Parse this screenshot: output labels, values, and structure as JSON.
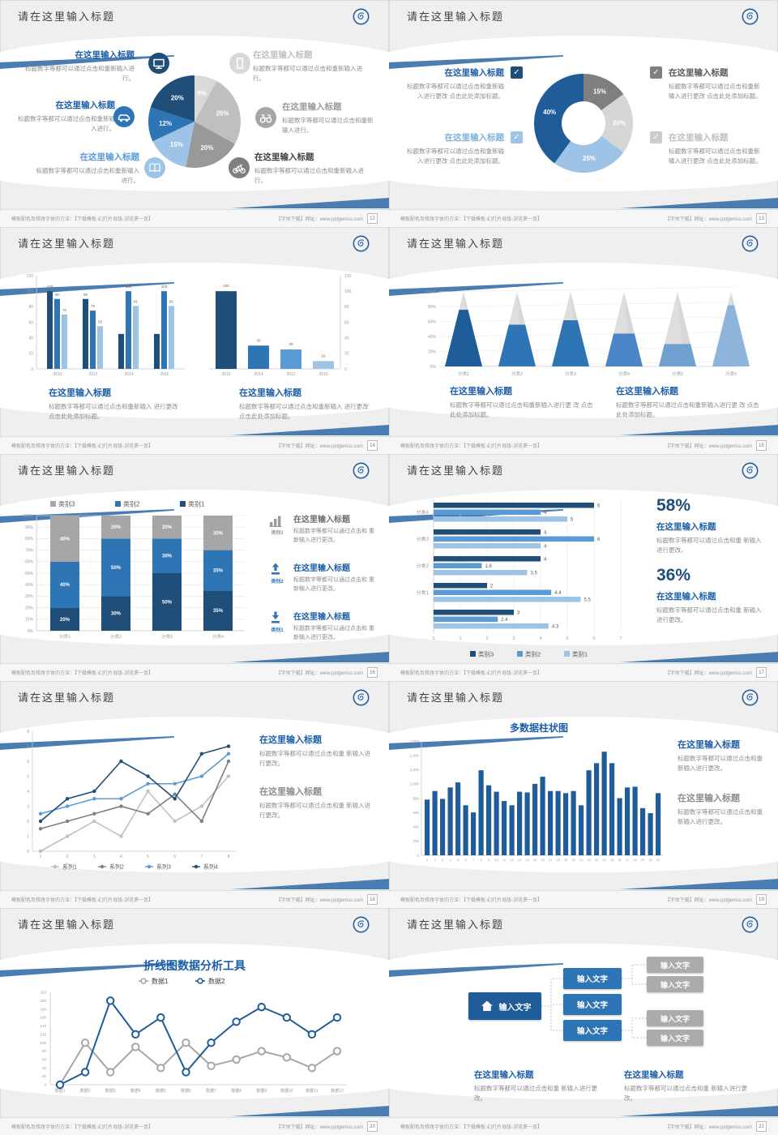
{
  "common": {
    "header_title": "请在这里输入标题",
    "footer_left": "模板配色及修改字体的方法：【下载模板-幻灯片母版-浏览第一页】",
    "footer_right": "【字体下载】网址：www.pptgenius.com",
    "logo_name": "school-emblem",
    "check_glyph": "✓",
    "colors": {
      "navy": "#1F4E79",
      "brightNavy": "#1F5C99",
      "blue": "#2E75B6",
      "medBlue": "#5B9BD5",
      "lightBlue": "#9DC3E6",
      "paleBlue": "#BDD7EE",
      "grayD": "#7F7F7F",
      "gray": "#A6A6A6",
      "grayL": "#BFBFBF",
      "grayP": "#D9D9D9",
      "titleBlue": "#1B5EA8",
      "body": "#8C8C8C",
      "axis": "#D9D9D9",
      "tick": "#9A9A9A"
    }
  },
  "slides": [
    {
      "page": "12",
      "type": "pie-callouts",
      "chart_data": {
        "type": "pie",
        "values": [
          8,
          25,
          20,
          15,
          12,
          20
        ],
        "labels": [
          "8%",
          "25%",
          "20%",
          "15%",
          "12%",
          "20%"
        ],
        "colors": [
          "#D9D9D9",
          "#BFBFBF",
          "#999999",
          "#9DC3E6",
          "#2E75B6",
          "#1F4E79"
        ]
      },
      "callouts": [
        {
          "title": "在这里输入标题",
          "body": "标题数字等都可以通过点击和重新输入进行。",
          "icon": "monitor-icon",
          "icon_bg": "#1F4E79",
          "title_color": "#1B5EA8"
        },
        {
          "title": "在这里输入标题",
          "body": "标题数字等都可以通过点击和重新输入进行。",
          "icon": "car-icon",
          "icon_bg": "#2E75B6",
          "title_color": "#1B5EA8"
        },
        {
          "title": "在这里输入标题",
          "body": "标题数字等都可以通过点击和重新输入进行。",
          "icon": "book-icon",
          "icon_bg": "#9DC3E6",
          "title_color": "#5B9BD5"
        },
        {
          "title": "在这里输入标题",
          "body": "标题数字等都可以通过点击和重新输入进行。",
          "icon": "phone-icon",
          "icon_bg": "#D9D9D9",
          "title_color": "#C0C0C0"
        },
        {
          "title": "在这里输入标题",
          "body": "标题数字等都可以通过点击和重新输入进行。",
          "icon": "binoculars-icon",
          "icon_bg": "#A6A6A6",
          "title_color": "#9A9A9A"
        },
        {
          "title": "在这里输入标题",
          "body": "标题数字等都可以通过点击和重新输入进行。",
          "icon": "bicycle-icon",
          "icon_bg": "#7F7F7F",
          "title_color": "#404040"
        }
      ]
    },
    {
      "page": "13",
      "type": "donut-checks",
      "chart_data": {
        "type": "pie",
        "values": [
          15,
          20,
          25,
          40
        ],
        "labels": [
          "15%",
          "20%",
          "25%",
          "40%"
        ],
        "colors": [
          "#7F7F7F",
          "#D6D6D6",
          "#9DC3E6",
          "#1F5C99"
        ],
        "inner_radius": true
      },
      "items": [
        {
          "title": "在这里输入标题",
          "body": "标题数字等都可以通过点击和重新输入进行更改 点击此处添加标题。",
          "box": "#1F4E79",
          "title_color": "#1B5EA8"
        },
        {
          "title": "在这里输入标题",
          "body": "标题数字等都可以通过点击和重新输入进行更改 点击此处添加标题。",
          "box": "#9DC3E6",
          "title_color": "#7EB0DC"
        },
        {
          "title": "在这里输入标题",
          "body": "标题数字等都可以通过点击和重新输入进行更改 点击此处添加标题。",
          "box": "#7F7F7F",
          "title_color": "#595959"
        },
        {
          "title": "在这里输入标题",
          "body": "标题数字等都可以通过点击和重新输入进行更改 点击此处添加标题。",
          "box": "#CCCCCC",
          "title_color": "#BFBFBF"
        }
      ]
    },
    {
      "page": "14",
      "type": "dual-bars",
      "chart_data": [
        {
          "type": "bar",
          "categories": [
            "2010",
            "2012",
            "2014",
            "2016"
          ],
          "ylim": [
            0,
            120
          ],
          "series": [
            {
              "name": "s1",
              "color": "#1F4E79",
              "values": [
                100,
                90,
                45,
                45
              ],
              "labels": [
                "100",
                "90",
                "",
                ""
              ]
            },
            {
              "name": "s2",
              "color": "#2E75B6",
              "values": [
                90,
                75,
                100,
                100
              ],
              "labels": [
                "90",
                "75",
                "100",
                "100"
              ]
            },
            {
              "name": "s3",
              "color": "#9DC3E6",
              "values": [
                70,
                55,
                81,
                81
              ],
              "labels": [
                "70",
                "55",
                "81",
                "81"
              ]
            }
          ]
        },
        {
          "type": "bar",
          "categories": [
            "2016",
            "2014",
            "2012",
            "2010"
          ],
          "ylim": [
            0,
            120
          ],
          "values": [
            100,
            30,
            25,
            10
          ],
          "labels": [
            "100",
            "30",
            "25",
            "10"
          ],
          "colors": [
            "#1F4E79",
            "#2E75B6",
            "#5B9BD5",
            "#9DC3E6"
          ]
        }
      ],
      "y_ticks": [
        "0",
        "20",
        "40",
        "60",
        "80",
        "100",
        "120"
      ],
      "blocks": [
        {
          "title": "在这里输入标题",
          "body": "标题数字等都可以通过点击和重新输入 进行更改 点击此处添加标题。"
        },
        {
          "title": "在这里输入标题",
          "body": "标题数字等都可以通过点击和重新输入 进行更改 点击此处添加标题。"
        }
      ]
    },
    {
      "page": "15",
      "type": "pyramids",
      "chart_data": {
        "type": "bar",
        "categories": [
          "分类1",
          "分类2",
          "分类3",
          "分类4",
          "分类5",
          "分类6"
        ],
        "values": [
          76,
          56,
          62,
          44,
          30,
          82
        ],
        "ylim": [
          0,
          100
        ],
        "colors": [
          "#1F5C99",
          "#2E75B6",
          "#2E75B6",
          "#4A86C5",
          "#6FA0D0",
          "#8EB4DC"
        ]
      },
      "y_ticks": [
        "0%",
        "20%",
        "40%",
        "60%",
        "80%",
        "100%"
      ],
      "blocks": [
        {
          "title": "在这里输入标题",
          "body": "标题数字等都可以通过点击和重新输入进行更 改 点击此处添加标题。"
        },
        {
          "title": "在这里输入标题",
          "body": "标题数字等都可以通过点击和重新输入进行更 改 点击此处添加标题。"
        }
      ]
    },
    {
      "page": "16",
      "type": "stacked",
      "chart_data": {
        "type": "bar",
        "categories": [
          "分类1",
          "分类2",
          "分类3",
          "分类4"
        ],
        "ylim": [
          0,
          100
        ],
        "series": [
          {
            "name": "类别1",
            "color": "#1F4E79",
            "values": [
              20,
              30,
              50,
              35
            ]
          },
          {
            "name": "类别2",
            "color": "#2E75B6",
            "values": [
              40,
              50,
              30,
              35
            ]
          },
          {
            "name": "类别3",
            "color": "#A6A6A6",
            "values": [
              40,
              20,
              20,
              30
            ]
          }
        ],
        "legend": [
          "类别3",
          "类别2",
          "类别1"
        ],
        "legend_colors": [
          "#A6A6A6",
          "#2E75B6",
          "#1F4E79"
        ]
      },
      "y_ticks": [
        "0%",
        "10%",
        "20%",
        "30%",
        "40%",
        "50%",
        "60%",
        "70%",
        "80%",
        "90%",
        "100%"
      ],
      "items": [
        {
          "label": "类别3",
          "icon": "chart-bars-icon",
          "icon_color": "#9A9A9A",
          "title": "在这里输入标题",
          "title_color": "#6f6f6f",
          "body": "标题数字等都可以通过点击和 重新输入进行更改。"
        },
        {
          "label": "类别2",
          "icon": "arrow-up-icon",
          "icon_color": "#2E75B6",
          "title": "在这里输入标题",
          "title_color": "#1B5EA8",
          "body": "标题数字等都可以通过点击和 重新输入进行更改。"
        },
        {
          "label": "类别1",
          "icon": "arrow-down-icon",
          "icon_color": "#2E75B6",
          "title": "在这里输入标题",
          "title_color": "#1B5EA8",
          "body": "标题数字等都可以通过点击和 重新输入进行更改。"
        }
      ]
    },
    {
      "page": "17",
      "type": "hbars",
      "chart_data": {
        "type": "bar",
        "orientation": "horizontal",
        "xlim": [
          0,
          7
        ],
        "x_ticks": [
          "0",
          "1",
          "2",
          "3",
          "4",
          "5",
          "6",
          "7"
        ],
        "groups": [
          {
            "label": "分类4",
            "values": [
              6,
              4,
              5
            ]
          },
          {
            "label": "分类3",
            "values": [
              4,
              6,
              4
            ]
          },
          {
            "label": "分类2",
            "values": [
              4,
              1.8,
              3.5
            ]
          },
          {
            "label": "分类1",
            "values": [
              2,
              4.4,
              5.5
            ]
          },
          {
            "label": "",
            "values": [
              3,
              2.4,
              4.3
            ]
          }
        ],
        "series_colors": [
          "#1F4E79",
          "#5B9BD5",
          "#9DC3E6"
        ],
        "legend": [
          "类别3",
          "类别2",
          "类别1"
        ],
        "legend_colors": [
          "#1F4E79",
          "#5B9BD5",
          "#9DC3E6"
        ]
      },
      "stats": [
        {
          "pct": "58%",
          "title": "在这里输入标题",
          "body": "标题数字等都可以通过点击和重 新输入进行更改。"
        },
        {
          "pct": "36%",
          "title": "在这里输入标题",
          "body": "标题数字等都可以通过点击和重 新输入进行更改。"
        }
      ]
    },
    {
      "page": "18",
      "type": "line4",
      "chart_data": {
        "type": "line",
        "x": [
          1,
          2,
          3,
          4,
          5,
          6,
          7,
          8
        ],
        "ylim": [
          0,
          8
        ],
        "series": [
          {
            "name": "系列1",
            "color": "#C0C0C0",
            "values": [
              0,
              1,
              2,
              1,
              4,
              2,
              3,
              5
            ]
          },
          {
            "name": "系列2",
            "color": "#7F7F7F",
            "values": [
              1.5,
              2,
              2.5,
              3,
              2.5,
              3.8,
              2,
              6
            ]
          },
          {
            "name": "系列3",
            "color": "#5B9BD5",
            "values": [
              2.5,
              3,
              3.5,
              3.5,
              4.5,
              4.5,
              5,
              6.5
            ]
          },
          {
            "name": "系列4",
            "color": "#1F4E79",
            "values": [
              2,
              3.5,
              4,
              6,
              5,
              3.5,
              6.5,
              7
            ]
          }
        ],
        "legend_position": "bottom"
      },
      "blocks": [
        {
          "title": "在这里输入标题",
          "title_color": "#1B5EA8",
          "body": "标题数字等都可以通过点击和重 新输入进行更改。"
        },
        {
          "title": "在这里输入标题",
          "title_color": "#8c8c8c",
          "body": "标题数字等都可以通过点击和重 新输入进行更改。"
        }
      ]
    },
    {
      "page": "19",
      "type": "columns",
      "chart_data": {
        "type": "bar",
        "title": "多数据柱状图",
        "color": "#1F5C99",
        "categories": [
          "1",
          "2",
          "3",
          "4",
          "5",
          "6",
          "7",
          "8",
          "9",
          "10",
          "11",
          "12",
          "13",
          "14",
          "15",
          "16",
          "17",
          "18",
          "19",
          "20",
          "21",
          "22",
          "23",
          "24",
          "25",
          "26",
          "27",
          "28",
          "29",
          "30",
          "31"
        ],
        "values": [
          780,
          900,
          790,
          950,
          1020,
          700,
          600,
          1190,
          980,
          890,
          760,
          700,
          890,
          880,
          1000,
          1100,
          900,
          900,
          870,
          900,
          700,
          1190,
          1290,
          1450,
          1290,
          800,
          950,
          960,
          660,
          590,
          870
        ],
        "ylim": [
          0,
          1600
        ],
        "y_ticks": [
          "0",
          "200",
          "400",
          "600",
          "800",
          "1,000",
          "1,200",
          "1,400",
          "1,600"
        ]
      },
      "blocks": [
        {
          "title": "在这里输入标题",
          "title_color": "#1B5EA8",
          "body": "标题数字等都可以通过点击和重 新输入进行更改。"
        },
        {
          "title": "在这里输入标题",
          "title_color": "#8c8c8c",
          "body": "标题数字等都可以通过点击和重 新输入进行更改。"
        }
      ]
    },
    {
      "page": "20",
      "type": "line2",
      "chart_data": {
        "type": "line",
        "title": "折线图数据分析工具",
        "categories": [
          "数据1",
          "数据2",
          "数据3",
          "数据4",
          "数据5",
          "数据6",
          "数据7",
          "数据8",
          "数据9",
          "数据10",
          "数据11",
          "数据12"
        ],
        "ylim": [
          0,
          220
        ],
        "series": [
          {
            "name": "数据1",
            "color": "#A6A6A6",
            "values": [
              0,
              100,
              30,
              90,
              40,
              100,
              45,
              60,
              80,
              65,
              40,
              80
            ]
          },
          {
            "name": "数据2",
            "color": "#1F5C99",
            "values": [
              0,
              30,
              200,
              120,
              160,
              30,
              100,
              150,
              185,
              160,
              120,
              160
            ]
          }
        ],
        "legend_position": "top"
      }
    },
    {
      "page": "21",
      "type": "org",
      "root_label": "输入文字",
      "node_label": "输入文字",
      "mid_labels": [
        "输入文字",
        "输入文字",
        "输入文字"
      ],
      "leaf_labels": [
        "输入文字",
        "输入文字",
        "输入文字",
        "输入文字"
      ],
      "root_color": "#1F5C99",
      "mid_color": "#2E75B6",
      "leaf_color": "#ABABAB",
      "blocks": [
        {
          "title": "在这里输入标题",
          "body": "标题数字等都可以通过点击和重 新输入进行更改。"
        },
        {
          "title": "在这里输入标题",
          "body": "标题数字等都可以通过点击和重 新输入进行更改。"
        }
      ]
    }
  ]
}
